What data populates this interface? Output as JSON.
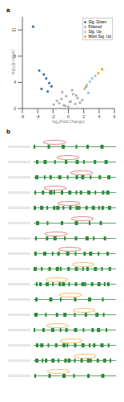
{
  "panel_labels": [
    "a",
    "b"
  ],
  "chart_data": {
    "type": "scatter",
    "x_label": "log₂(Fold Change)",
    "y_label": "-log₁₀(p-value)",
    "xlim": [
      -6,
      6
    ],
    "xticks": [
      -6,
      -4,
      -2,
      0,
      2,
      4,
      6
    ],
    "ylim": [
      0,
      14
    ],
    "yticks": [
      0,
      4,
      8,
      12
    ],
    "grid": false,
    "legend": "upper right",
    "series": [
      {
        "name": "Sig. Down",
        "color": "#3b6fb6",
        "x": [
          -4.6,
          -3.8,
          -3.2,
          -2.9,
          -2.5,
          -2.2,
          -3.5,
          -2.7
        ],
        "values": [
          12.5,
          5.8,
          5.2,
          4.6,
          3.9,
          3.4,
          3.0,
          2.6
        ]
      },
      {
        "name": "Filtered",
        "color": "#b0b0b0",
        "x": [
          -1.5,
          -1.2,
          -0.9,
          -0.6,
          -0.3,
          0,
          0.3,
          0.6,
          0.9,
          1.2,
          1.5,
          -0.8,
          0.5,
          1.8,
          -1.9,
          0.2,
          -0.4,
          1.0
        ],
        "values": [
          1.2,
          0.8,
          1.5,
          0.5,
          1.9,
          0.3,
          1.1,
          2.2,
          0.7,
          1.6,
          0.9,
          2.5,
          2.8,
          1.3,
          0.6,
          1.0,
          0.4,
          2.0
        ]
      },
      {
        "name": "Sig. Up",
        "color": "#9cc3e6",
        "x": [
          2.1,
          2.4,
          2.8,
          3.1,
          3.5,
          2.6
        ],
        "values": [
          3.0,
          3.6,
          4.1,
          4.6,
          5.0,
          2.4
        ]
      },
      {
        "name": "Most Sig. Up",
        "color": "#f0a030",
        "x": [
          3.9,
          4.4,
          2.3
        ],
        "values": [
          5.4,
          6.0,
          3.3
        ]
      }
    ]
  }
}
